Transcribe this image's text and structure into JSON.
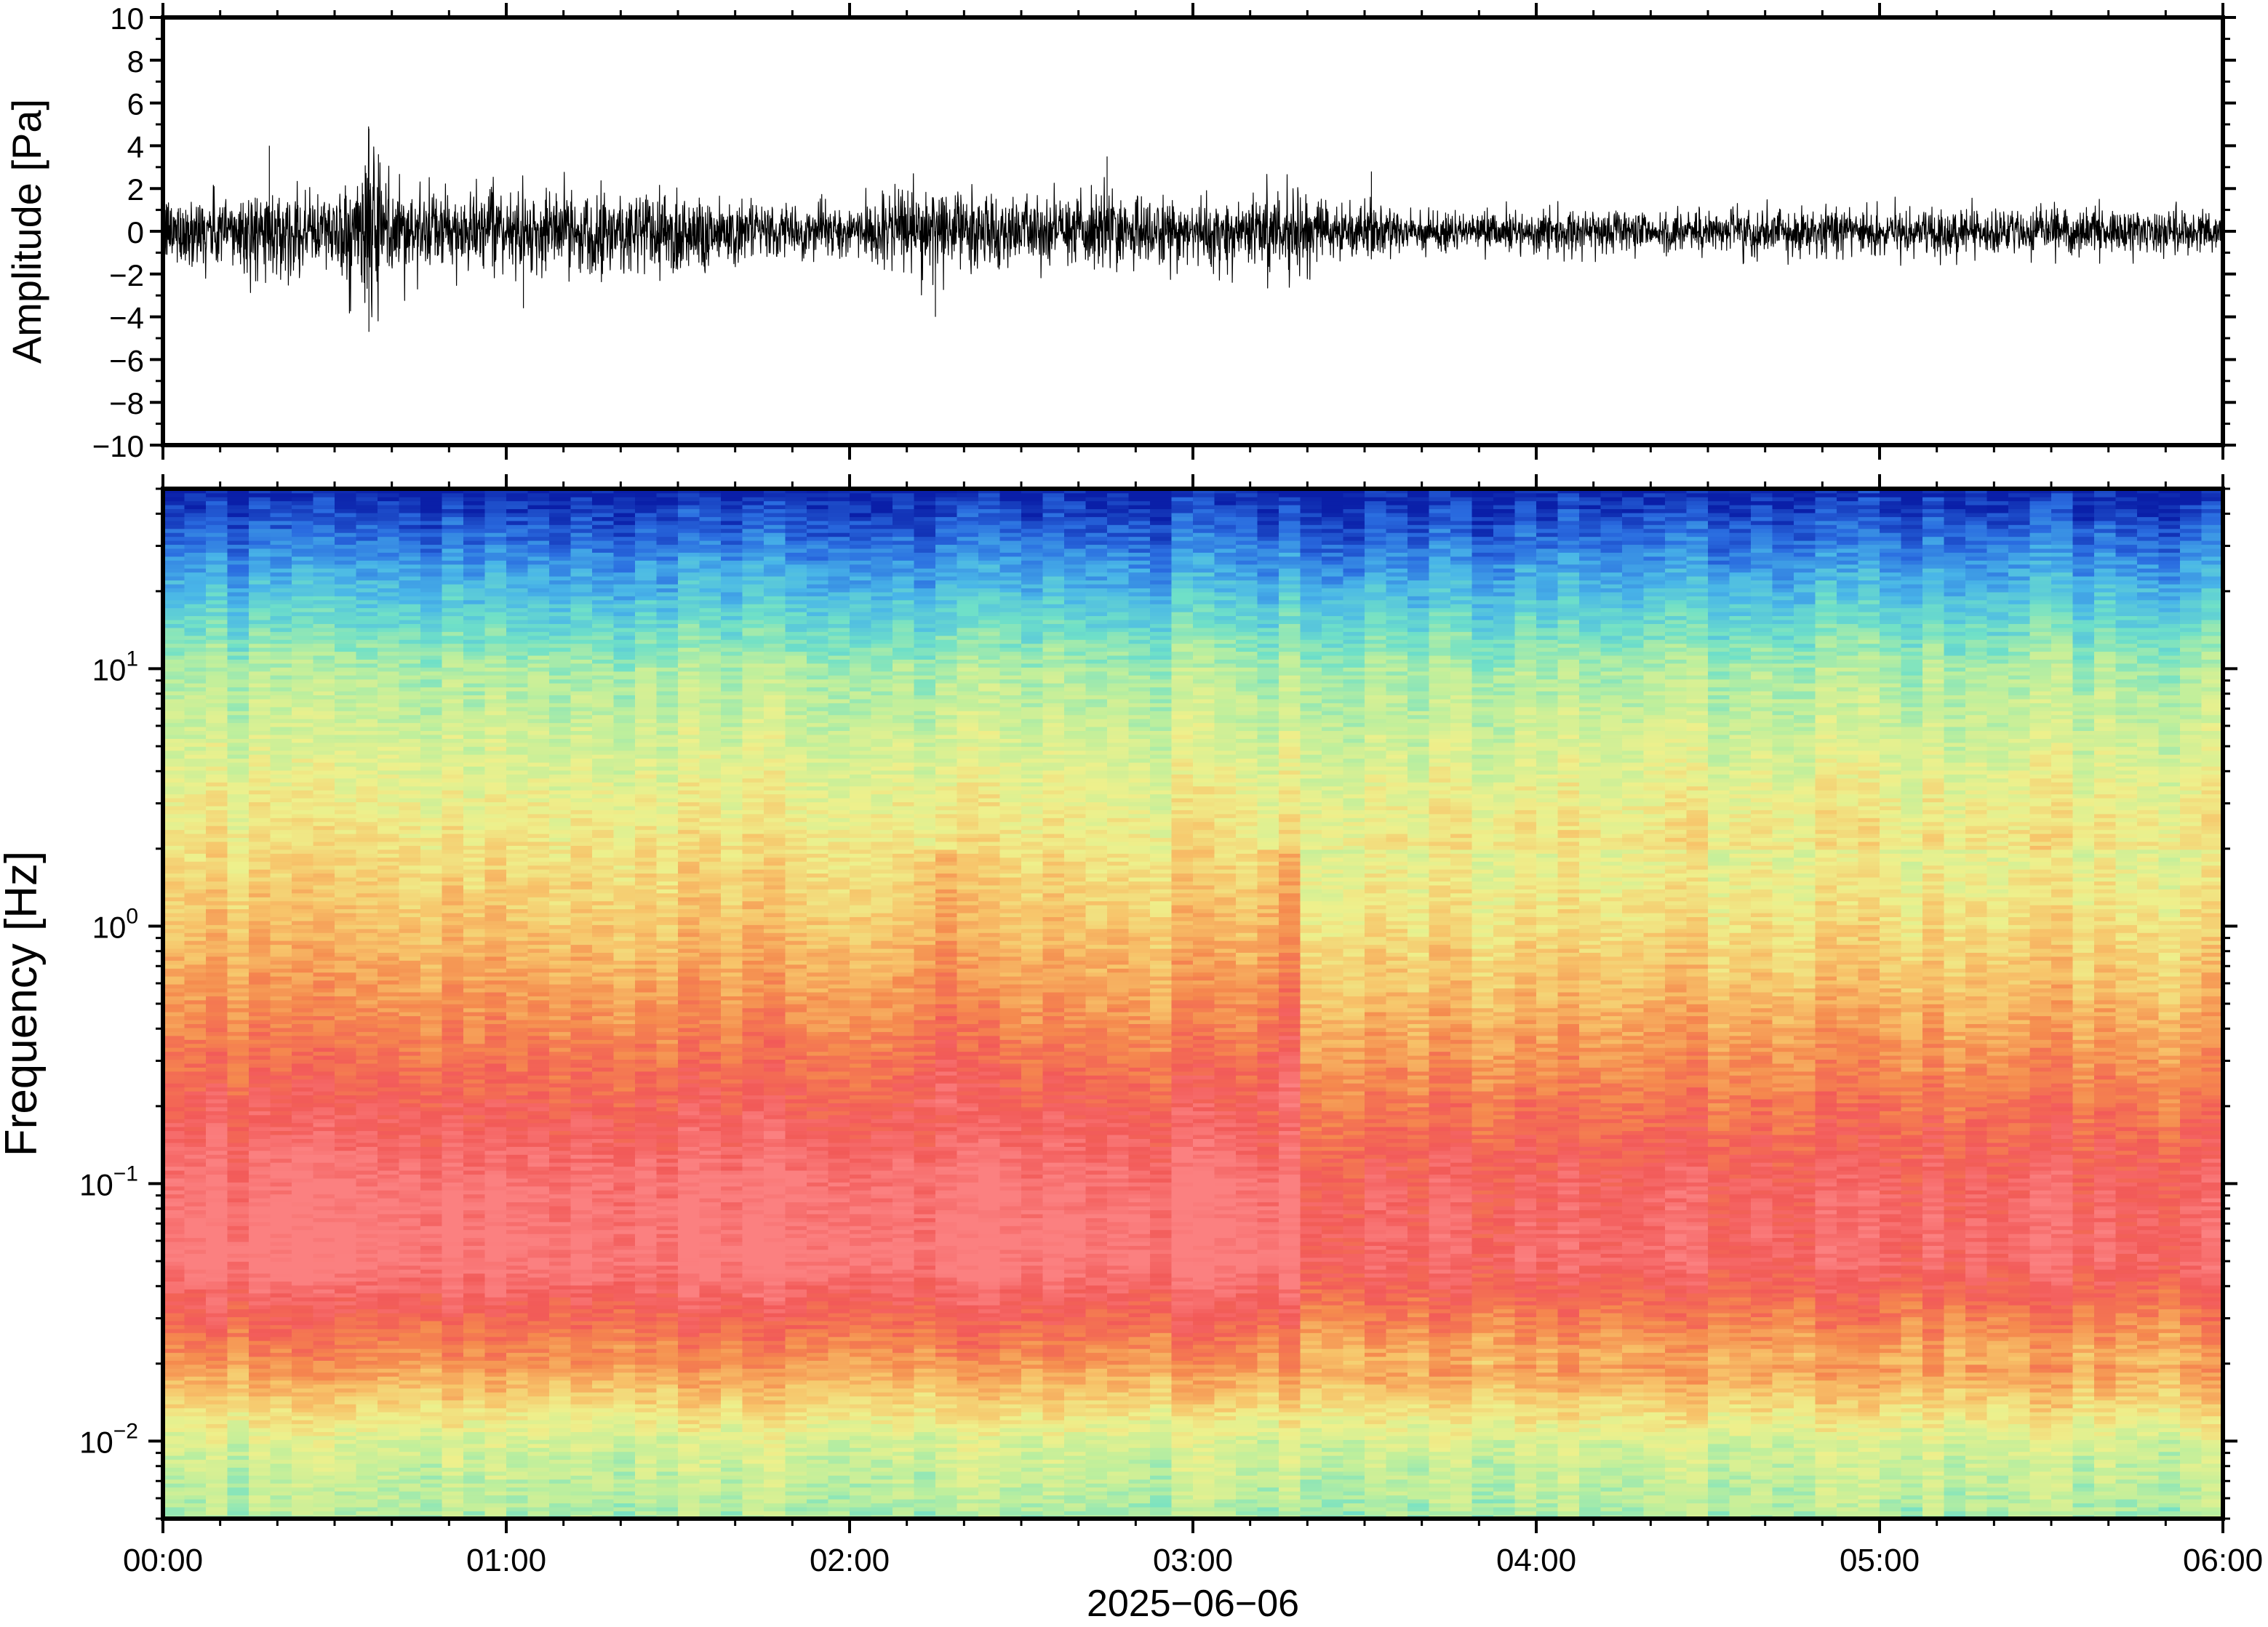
{
  "chart_data": [
    {
      "type": "line",
      "title": "",
      "xlabel": "",
      "ylabel": "Amplitude [Pa]",
      "ylim": [
        -10,
        10
      ],
      "yticks": [
        "10",
        "8",
        "6",
        "4",
        "2",
        "0",
        "−2",
        "−4",
        "−6",
        "−8",
        "−10"
      ],
      "ytick_values": [
        10,
        8,
        6,
        4,
        2,
        0,
        -2,
        -4,
        -6,
        -8,
        -10
      ],
      "x_range_hours": [
        0,
        6
      ],
      "series": [
        {
          "color": "#000000",
          "envelope_hours": [
            0,
            0.25,
            0.5,
            0.6,
            0.75,
            1.0,
            1.25,
            1.5,
            1.75,
            2.0,
            2.25,
            2.5,
            2.75,
            3.0,
            3.25,
            3.5,
            3.75,
            4.0,
            4.5,
            5.0,
            5.5,
            6.0
          ],
          "envelope_amplitude_pa": [
            2.0,
            2.5,
            2.2,
            4.8,
            2.2,
            2.2,
            2.5,
            2.8,
            1.5,
            1.5,
            2.8,
            1.8,
            2.4,
            1.8,
            2.4,
            1.4,
            1.2,
            1.2,
            1.3,
            1.4,
            1.3,
            1.3
          ]
        }
      ]
    },
    {
      "type": "heatmap",
      "title": "",
      "xlabel": "2025−06−06",
      "ylabel": "Frequency [Hz]",
      "y_scale": "log",
      "ylim": [
        0.005,
        50
      ],
      "yticks": [
        {
          "base": "10",
          "exp": "1",
          "value": 10
        },
        {
          "base": "10",
          "exp": "0",
          "value": 1
        },
        {
          "base": "10",
          "exp": "−1",
          "value": 0.1
        },
        {
          "base": "10",
          "exp": "−2",
          "value": 0.01
        }
      ],
      "x_range_hours": [
        0,
        6
      ],
      "xticks": [
        "00:00",
        "01:00",
        "02:00",
        "03:00",
        "04:00",
        "05:00",
        "06:00"
      ],
      "colormap": [
        "#0a1fa8",
        "#2a6ce0",
        "#49b6e8",
        "#6fe0c8",
        "#bfef9c",
        "#eef08c",
        "#f7c46a",
        "#f58a4e",
        "#f25a58",
        "#fb8080"
      ],
      "frequency_profile_hz": [
        0.005,
        0.01,
        0.02,
        0.05,
        0.1,
        0.2,
        0.5,
        1,
        3,
        10,
        20,
        50
      ],
      "frequency_profile_color_index": [
        3.8,
        4.5,
        6.8,
        9.0,
        8.8,
        8.0,
        6.8,
        6.0,
        5.0,
        3.8,
        2.2,
        0.0
      ]
    }
  ]
}
